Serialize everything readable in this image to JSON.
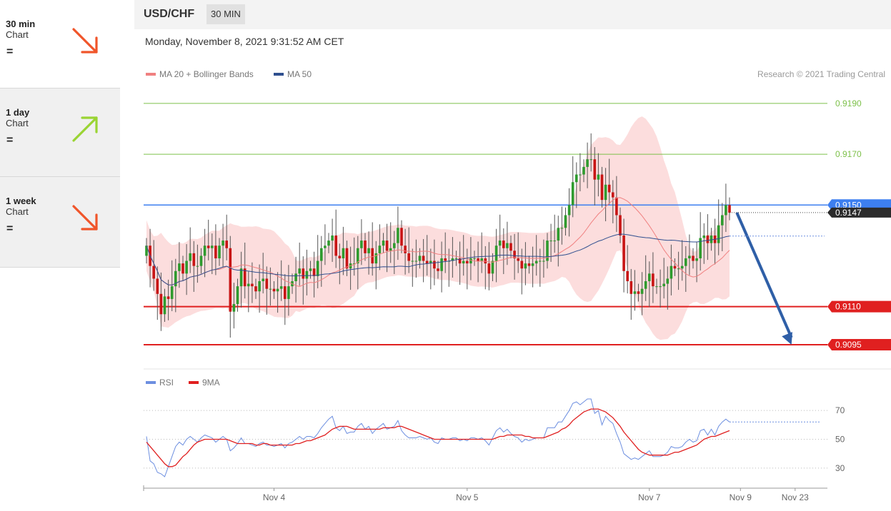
{
  "sidebar": {
    "cards": [
      {
        "title": "30 min",
        "sub": "Chart",
        "eq": "=",
        "direction": "down",
        "color": "#f0552a"
      },
      {
        "title": "1 day",
        "sub": "Chart",
        "eq": "=",
        "direction": "up",
        "color": "#9ad433"
      },
      {
        "title": "1 week",
        "sub": "Chart",
        "eq": "=",
        "direction": "down",
        "color": "#f0552a"
      }
    ]
  },
  "header": {
    "pair": "USD/CHF",
    "timeframe": "30 MIN",
    "datetime": "Monday, November 8, 2021 9:31:52 AM CET",
    "credit": "Research © 2021 Trading Central"
  },
  "legend": {
    "ma20": "MA 20 + Bollinger Bands",
    "ma50": "MA 50",
    "ma20_color": "#f08080",
    "ma50_color": "#2f4f8f",
    "rsi": "RSI",
    "rsi9": "9MA",
    "rsi_color": "#6d8fe0",
    "rsi9_color": "#e02020"
  },
  "chart_data": {
    "type": "candlestick",
    "instrument": "USD/CHF",
    "timeframe": "30 MIN",
    "ylim": [
      0.9086,
      0.9197
    ],
    "xlabels": [
      "Nov 4",
      "Nov 5",
      "Nov 7",
      "Nov 9",
      "Nov 23"
    ],
    "xlabel_index": [
      35,
      88,
      138,
      163,
      178
    ],
    "price_levels": [
      {
        "value": 0.919,
        "label": "0.9190",
        "color": "#7dc04a",
        "kind": "target"
      },
      {
        "value": 0.917,
        "label": "0.9170",
        "color": "#7dc04a",
        "kind": "target"
      },
      {
        "value": 0.915,
        "label": "0.9150",
        "color": "#3d7ff0",
        "kind": "pivot"
      },
      {
        "value": 0.911,
        "label": "0.9110",
        "color": "#e02020",
        "kind": "support"
      },
      {
        "value": 0.9095,
        "label": "0.9095",
        "color": "#e02020",
        "kind": "support"
      }
    ],
    "last_price": {
      "value": 0.9147,
      "label": "0.9147"
    },
    "forecast": {
      "from_index": 162,
      "from_value": 0.9147,
      "to_index": 177,
      "to_value": 0.9095,
      "color": "#2f5fa7"
    },
    "close": [
      0.9134,
      0.9126,
      0.9121,
      0.9115,
      0.9107,
      0.9114,
      0.9113,
      0.9118,
      0.9124,
      0.9127,
      0.9123,
      0.9128,
      0.9131,
      0.9126,
      0.9126,
      0.913,
      0.9134,
      0.9133,
      0.9134,
      0.9129,
      0.9134,
      0.9136,
      0.9133,
      0.9108,
      0.9111,
      0.9118,
      0.9125,
      0.9118,
      0.9119,
      0.9118,
      0.9116,
      0.912,
      0.9121,
      0.9117,
      0.9117,
      0.9116,
      0.9117,
      0.9118,
      0.9113,
      0.9118,
      0.912,
      0.9123,
      0.9125,
      0.9121,
      0.9124,
      0.9125,
      0.9122,
      0.9128,
      0.9133,
      0.9134,
      0.9136,
      0.9138,
      0.913,
      0.9129,
      0.9133,
      0.9125,
      0.9127,
      0.9127,
      0.9133,
      0.9136,
      0.9131,
      0.9133,
      0.9127,
      0.9131,
      0.9134,
      0.9136,
      0.9132,
      0.9133,
      0.9135,
      0.9141,
      0.9134,
      0.9131,
      0.9128,
      0.9128,
      0.9128,
      0.913,
      0.9128,
      0.9127,
      0.9128,
      0.9125,
      0.9124,
      0.9129,
      0.9128,
      0.9128,
      0.9129,
      0.9129,
      0.9127,
      0.9128,
      0.9127,
      0.9129,
      0.9129,
      0.9128,
      0.9129,
      0.9127,
      0.9123,
      0.9128,
      0.9134,
      0.9136,
      0.9133,
      0.9135,
      0.9132,
      0.9129,
      0.9128,
      0.9125,
      0.9127,
      0.9126,
      0.9127,
      0.9128,
      0.9128,
      0.9128,
      0.9136,
      0.9136,
      0.9136,
      0.9141,
      0.9141,
      0.9146,
      0.915,
      0.9159,
      0.9162,
      0.9162,
      0.9165,
      0.9168,
      0.9168,
      0.916,
      0.9162,
      0.9152,
      0.9158,
      0.9155,
      0.9153,
      0.9146,
      0.9138,
      0.9124,
      0.912,
      0.9115,
      0.9116,
      0.9115,
      0.9117,
      0.912,
      0.9123,
      0.9118,
      0.9118,
      0.9118,
      0.9119,
      0.9121,
      0.9126,
      0.9125,
      0.9125,
      0.9126,
      0.9129,
      0.913,
      0.9128,
      0.9129,
      0.9137,
      0.9138,
      0.9135,
      0.9138,
      0.9135,
      0.9142,
      0.9146,
      0.915,
      0.9147
    ],
    "rsi": {
      "ylim": [
        20,
        80
      ],
      "ticks": [
        30,
        50,
        70
      ],
      "rsi_values": [
        52,
        35,
        33,
        27,
        26,
        24,
        31,
        38,
        45,
        48,
        46,
        50,
        52,
        50,
        48,
        51,
        53,
        52,
        51,
        48,
        50,
        52,
        50,
        42,
        44,
        47,
        51,
        47,
        47,
        46,
        45,
        47,
        48,
        46,
        46,
        45,
        46,
        47,
        44,
        47,
        48,
        50,
        52,
        50,
        52,
        52,
        51,
        54,
        58,
        61,
        64,
        66,
        58,
        56,
        59,
        54,
        55,
        55,
        59,
        61,
        57,
        59,
        54,
        57,
        59,
        61,
        57,
        58,
        59,
        63,
        56,
        53,
        51,
        51,
        51,
        52,
        51,
        50,
        51,
        48,
        47,
        51,
        50,
        50,
        51,
        51,
        49,
        50,
        49,
        51,
        51,
        50,
        51,
        49,
        46,
        51,
        56,
        58,
        55,
        57,
        54,
        52,
        51,
        48,
        50,
        49,
        50,
        51,
        51,
        51,
        58,
        58,
        58,
        62,
        62,
        66,
        70,
        75,
        76,
        74,
        76,
        78,
        78,
        68,
        70,
        60,
        66,
        63,
        61,
        54,
        48,
        40,
        38,
        36,
        37,
        36,
        38,
        40,
        42,
        38,
        38,
        38,
        39,
        41,
        45,
        44,
        44,
        45,
        48,
        50,
        48,
        49,
        56,
        57,
        53,
        57,
        53,
        59,
        62,
        64,
        62
      ],
      "ma_values": [
        48,
        45,
        42,
        39,
        36,
        33,
        31,
        31,
        32,
        35,
        38,
        40,
        43,
        46,
        48,
        49,
        50,
        50,
        50,
        50,
        50,
        50,
        50,
        49,
        48,
        47,
        47,
        47,
        47,
        47,
        46,
        46,
        47,
        47,
        46,
        46,
        46,
        46,
        46,
        46,
        46,
        47,
        47,
        48,
        49,
        49,
        50,
        51,
        52,
        53,
        55,
        57,
        58,
        59,
        59,
        59,
        58,
        57,
        57,
        57,
        57,
        57,
        57,
        57,
        57,
        58,
        58,
        58,
        58,
        59,
        59,
        58,
        57,
        56,
        55,
        54,
        53,
        52,
        51,
        50,
        50,
        50,
        50,
        50,
        50,
        50,
        50,
        50,
        50,
        50,
        50,
        50,
        50,
        50,
        50,
        50,
        51,
        52,
        52,
        53,
        53,
        53,
        53,
        53,
        52,
        52,
        51,
        51,
        51,
        51,
        52,
        53,
        54,
        55,
        57,
        58,
        60,
        63,
        65,
        67,
        69,
        70,
        71,
        71,
        71,
        70,
        69,
        67,
        65,
        62,
        59,
        55,
        52,
        49,
        46,
        43,
        41,
        40,
        39,
        39,
        39,
        39,
        39,
        39,
        40,
        41,
        41,
        42,
        43,
        44,
        45,
        46,
        48,
        50,
        51,
        52,
        52,
        53,
        54,
        55,
        56
      ]
    }
  }
}
